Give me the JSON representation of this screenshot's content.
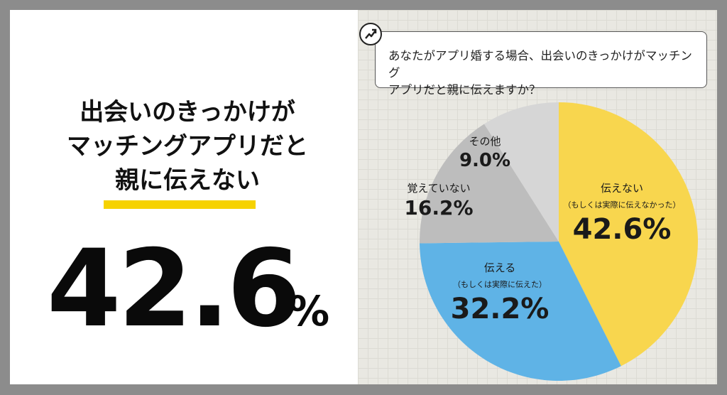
{
  "headline": {
    "line1": "出会いのきっかけが",
    "line2": "マッチングアプリだと",
    "line3": "親に伝えない",
    "accent_color": "#f6d200"
  },
  "big_stat": {
    "value": "42.6",
    "unit": "%"
  },
  "question": {
    "line1": "あなたがアプリ婚する場合、出会いのきっかけがマッチング",
    "line2": "アプリだと親に伝えますか？",
    "icon": "trend-arrow-icon"
  },
  "chart_data": {
    "type": "pie",
    "title": "",
    "start_angle_deg": 0,
    "direction": "clockwise",
    "slices": [
      {
        "label": "伝えない",
        "sublabel": "（もしくは実際に伝えなかった）",
        "value": 42.6,
        "value_label": "42.6%",
        "color": "#f8d64e"
      },
      {
        "label": "伝える",
        "sublabel": "（もしくは実際に伝えた）",
        "value": 32.2,
        "value_label": "32.2%",
        "color": "#5fb3e6"
      },
      {
        "label": "覚えていない",
        "sublabel": "",
        "value": 16.2,
        "value_label": "16.2%",
        "color": "#bdbdbd"
      },
      {
        "label": "その他",
        "sublabel": "",
        "value": 9.0,
        "value_label": "9.0%",
        "color": "#d6d6d6"
      }
    ]
  }
}
